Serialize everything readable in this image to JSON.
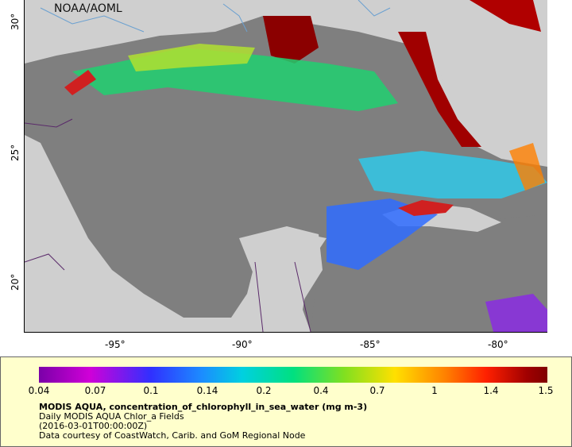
{
  "map": {
    "credit": "NOAA/AOML",
    "y_ticks": [
      "30°",
      "25°",
      "20°"
    ],
    "x_ticks": [
      "-95°",
      "-90°",
      "-85°",
      "-80°"
    ],
    "colors": {
      "land": "#cfcfcf",
      "nodata_sea": "#7f7f7f",
      "border": "#5a2a6a",
      "river": "#6aa0d0"
    }
  },
  "legend": {
    "ticks": [
      "0.04",
      "0.07",
      "0.1",
      "0.14",
      "0.2",
      "0.4",
      "0.7",
      "1",
      "1.4",
      "1.5"
    ],
    "title": "MODIS AQUA, concentration_of_chlorophyll_in_sea_water (mg m-3)",
    "line2": "Daily MODIS AQUA Chlor_a Fields",
    "line3": "(2016-03-01T00:00:00Z)",
    "line4": "Data courtesy of CoastWatch, Carib. and GoM Regional Node"
  }
}
